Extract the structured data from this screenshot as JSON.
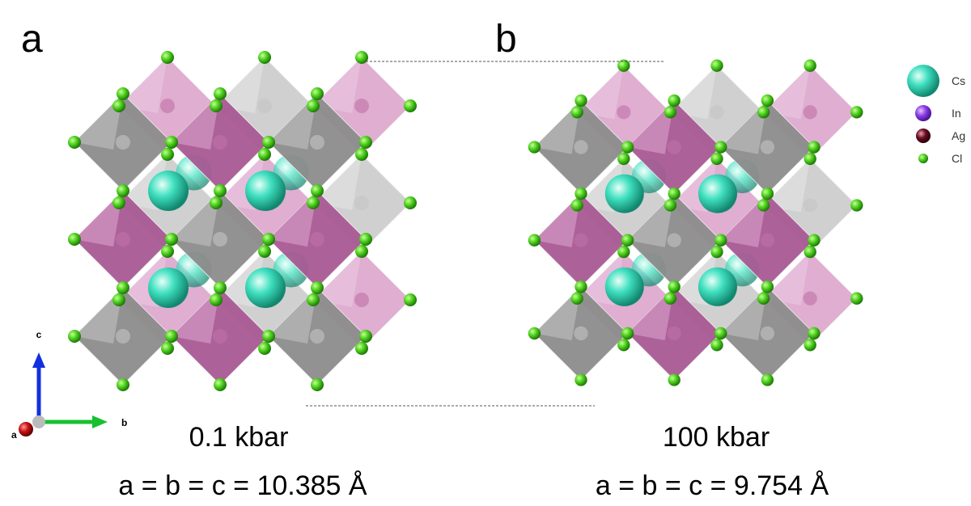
{
  "panels": [
    {
      "label": "a",
      "pressure": "0.1 kbar",
      "lattice": "a = b = c = 10.385 Å"
    },
    {
      "label": "b",
      "pressure": "100 kbar",
      "lattice": "a = b = c = 9.754 Å"
    }
  ],
  "legend": [
    "Cs",
    "In",
    "Ag",
    "Cl"
  ],
  "axes": {
    "c": "c",
    "b": "b",
    "a": "a"
  }
}
